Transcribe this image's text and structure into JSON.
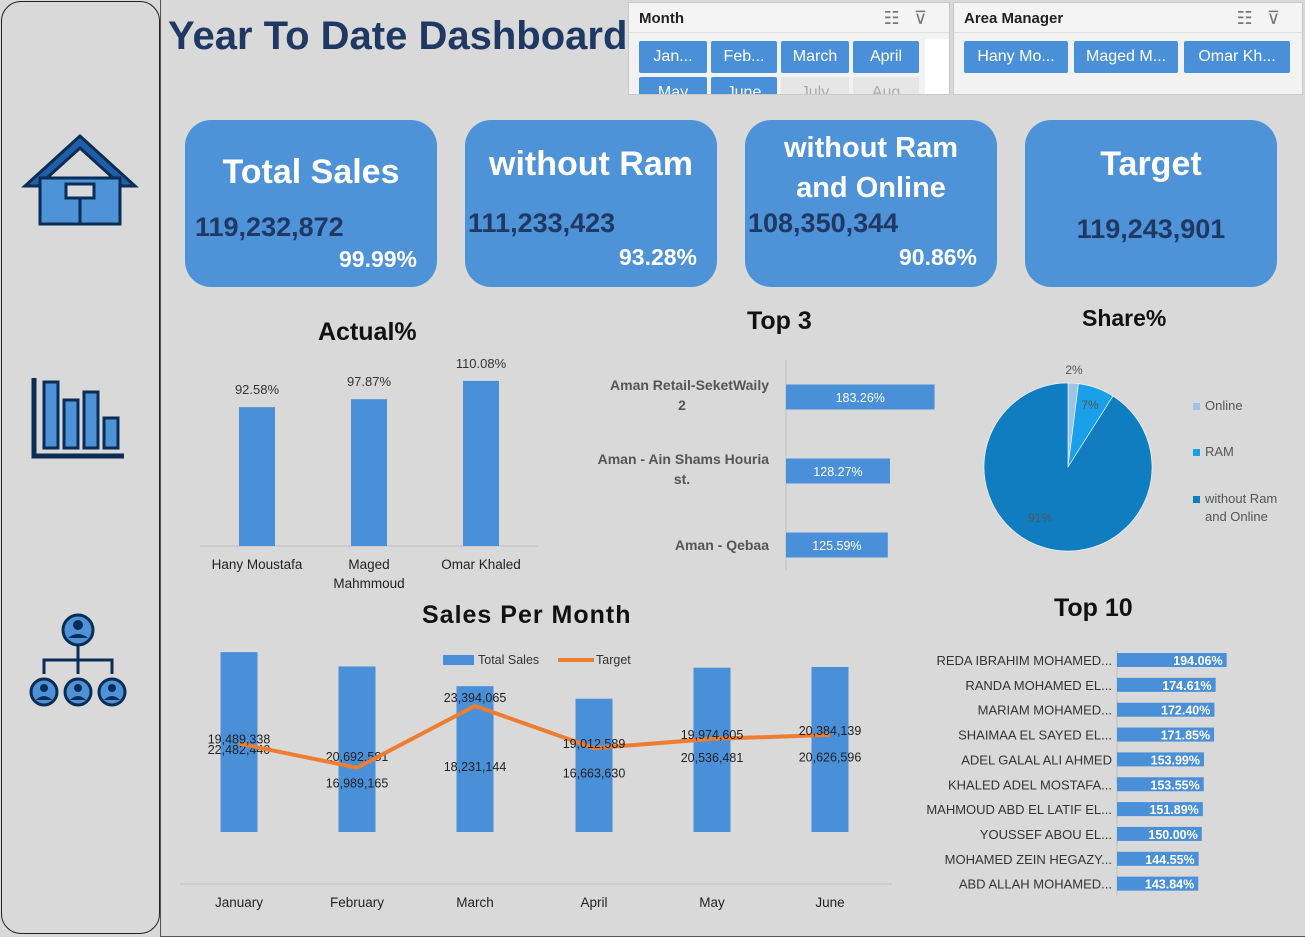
{
  "header": {
    "title": "Year To Date Dashboard"
  },
  "sidebar": {
    "items": [
      {
        "icon": "home-icon"
      },
      {
        "icon": "bar-chart-icon"
      },
      {
        "icon": "org-chart-icon"
      }
    ]
  },
  "slicers": {
    "month": {
      "title": "Month",
      "items": [
        "Jan...",
        "Feb...",
        "March",
        "April",
        "May",
        "June",
        "July",
        "Aug"
      ],
      "selected": [
        "Jan...",
        "Feb...",
        "March",
        "April",
        "May",
        "June"
      ]
    },
    "area_manager": {
      "title": "Area Manager",
      "items": [
        "Hany Mo...",
        "Maged M...",
        "Omar Kh..."
      ]
    }
  },
  "kpis": [
    {
      "title_lines": [
        "Total Sales"
      ],
      "value": "119,232,872",
      "pct": "99.99%"
    },
    {
      "title_lines": [
        "without Ram"
      ],
      "value": "111,233,423",
      "pct": "93.28%"
    },
    {
      "title_lines": [
        "without Ram",
        "and Online"
      ],
      "value": "108,350,344",
      "pct": "90.86%"
    },
    {
      "title_lines": [
        "Target"
      ],
      "value": "119,243,901",
      "pct": ""
    }
  ],
  "colors": {
    "accent": "#4e92d8",
    "title": "#1f3864",
    "target_line": "#ed7d31",
    "pie_dark": "#0f7dbf",
    "pie_mid": "#1aa0e8",
    "pie_light": "#9dc3e6"
  },
  "chart_data": [
    {
      "id": "actual",
      "type": "bar",
      "title": "Actual%",
      "categories": [
        "Hany Moustafa",
        "Maged Mahmmoud",
        "Omar Khaled"
      ],
      "category_lines": [
        [
          "Hany Moustafa"
        ],
        [
          "Maged",
          "Mahmmoud"
        ],
        [
          "Omar Khaled"
        ]
      ],
      "values": [
        92.58,
        97.87,
        110.08
      ],
      "labels": [
        "92.58%",
        "97.87%",
        "110.08%"
      ],
      "ylim": [
        0,
        120
      ]
    },
    {
      "id": "top3",
      "type": "bar",
      "orientation": "horizontal",
      "title": "Top 3",
      "categories": [
        "Aman Retail-SeketWaily 2",
        "Aman - Ain Shams Houria st.",
        "Aman - Qebaa"
      ],
      "category_lines": [
        [
          "Aman Retail-SeketWaily",
          "2"
        ],
        [
          "Aman - Ain Shams Houria",
          "st."
        ],
        [
          "Aman - Qebaa"
        ]
      ],
      "values": [
        183.26,
        128.27,
        125.59
      ],
      "labels": [
        "183.26%",
        "128.27%",
        "125.59%"
      ],
      "xlim": [
        0,
        190
      ]
    },
    {
      "id": "share",
      "type": "pie",
      "title": "Share%",
      "categories": [
        "Online",
        "RAM",
        "without Ram and Online"
      ],
      "legend_lines": [
        [
          "Online"
        ],
        [
          "RAM"
        ],
        [
          "without Ram",
          "and Online"
        ]
      ],
      "values": [
        2,
        7,
        91
      ],
      "labels": [
        "2%",
        "7%",
        "91%"
      ],
      "colors": [
        "#9dc3e6",
        "#1aa0e8",
        "#0f7dbf"
      ],
      "legend": "right"
    },
    {
      "id": "sales_per_month",
      "type": "bar",
      "title": "Sales Per Month",
      "categories": [
        "January",
        "February",
        "March",
        "April",
        "May",
        "June"
      ],
      "series": [
        {
          "name": "Total Sales",
          "type": "bar",
          "values": [
            22482440,
            20692581,
            18231144,
            16663630,
            20536481,
            20626596
          ],
          "labels": [
            "22,482,440",
            "20,692,581",
            "18,231,144",
            "16,663,630",
            "20,536,481",
            "20,626,596"
          ]
        },
        {
          "name": "Target",
          "type": "line",
          "values": [
            19489338,
            16989165,
            23394065,
            19012589,
            19974605,
            20384139
          ],
          "labels": [
            "19,489,338",
            "16,989,165",
            "23,394,065",
            "19,012,589",
            "19,974,605",
            "20,384,139"
          ]
        }
      ],
      "ylim": [
        0,
        28000000
      ],
      "legend": "top"
    },
    {
      "id": "top10",
      "type": "bar",
      "orientation": "horizontal",
      "title": "Top 10",
      "categories": [
        "REDA IBRAHIM MOHAMED...",
        "RANDA MOHAMED EL...",
        "MARIAM MOHAMED...",
        "SHAIMAA EL SAYED EL...",
        "ADEL GALAL ALI AHMED",
        "KHALED ADEL MOSTAFA...",
        "MAHMOUD ABD EL LATIF EL...",
        "YOUSSEF ABOU EL...",
        "MOHAMED ZEIN HEGAZY...",
        "ABD ALLAH MOHAMED..."
      ],
      "values": [
        194.06,
        174.61,
        172.4,
        171.85,
        153.99,
        153.55,
        151.89,
        150.0,
        144.55,
        143.84
      ],
      "labels": [
        "194.06%",
        "174.61%",
        "172.40%",
        "171.85%",
        "153.99%",
        "153.55%",
        "151.89%",
        "150.00%",
        "144.55%",
        "143.84%"
      ],
      "xlim": [
        0,
        200
      ]
    }
  ]
}
